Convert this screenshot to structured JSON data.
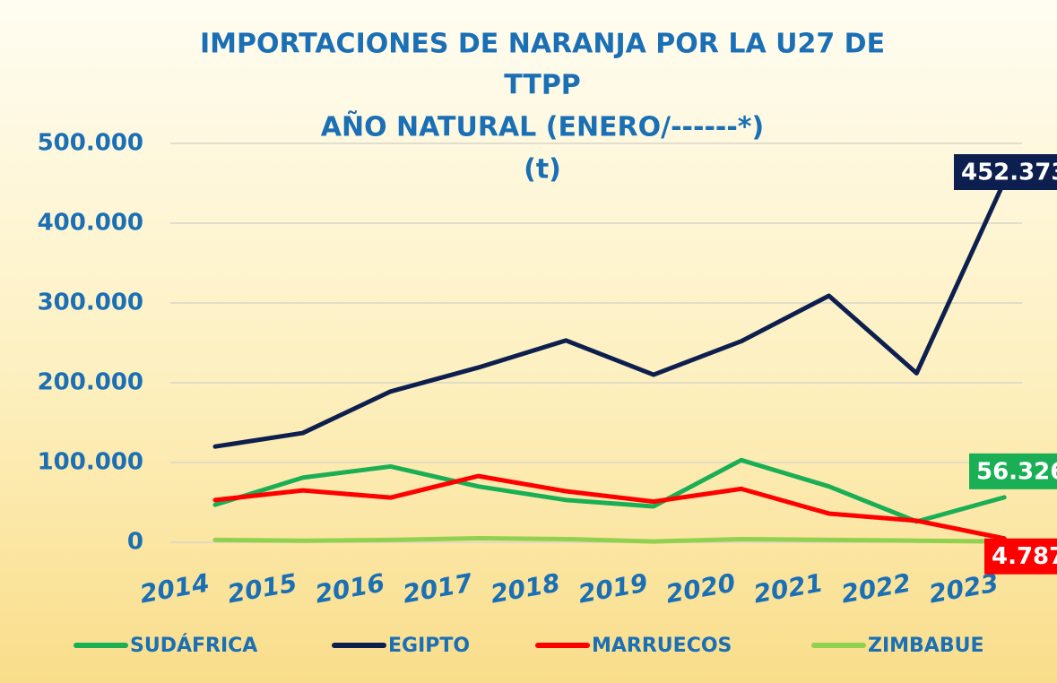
{
  "chart_data": {
    "type": "line",
    "title": [
      "IMPORTACIONES DE NARANJA POR LA U27 DE",
      "TTPP",
      "AÑO NATURAL (ENERO/------*)",
      "(t)"
    ],
    "categories": [
      "2014",
      "2015",
      "2016",
      "2017",
      "2018",
      "2019",
      "2020",
      "2021",
      "2022",
      "2023"
    ],
    "series": [
      {
        "name": "SUDÁFRICA",
        "color": "#1aaf54",
        "values": [
          47000,
          81000,
          95000,
          70000,
          53000,
          45000,
          103000,
          70000,
          26000,
          56326
        ],
        "value_labels": [
          null,
          null,
          null,
          null,
          null,
          null,
          null,
          null,
          null,
          "56.326"
        ]
      },
      {
        "name": "EGIPTO",
        "color": "#0d1f4f",
        "values": [
          120000,
          137000,
          189000,
          219000,
          253000,
          210000,
          252000,
          309000,
          212000,
          452373
        ],
        "value_labels": [
          null,
          null,
          null,
          null,
          null,
          null,
          null,
          null,
          null,
          "452.373"
        ]
      },
      {
        "name": "MARRUECOS",
        "color": "#ff0000",
        "values": [
          53000,
          65000,
          56000,
          83000,
          64000,
          51000,
          67000,
          36000,
          27000,
          4787
        ],
        "value_labels": [
          null,
          null,
          null,
          null,
          null,
          null,
          null,
          null,
          null,
          "4.787"
        ]
      },
      {
        "name": "ZIMBABUE",
        "color": "#92d050",
        "values": [
          3000,
          2000,
          3000,
          5000,
          4000,
          1000,
          4000,
          3000,
          2000,
          1000
        ]
      }
    ],
    "ylim": [
      0,
      500000
    ],
    "yticks": [
      0,
      {
        "value": 100000,
        "label": "100.000"
      },
      {
        "value": 200000,
        "label": "200.000"
      },
      {
        "value": 300000,
        "label": "300.000"
      },
      {
        "value": 400000,
        "label": "400.000"
      },
      {
        "value": 500000,
        "label": "500.000"
      }
    ],
    "grid": true
  }
}
